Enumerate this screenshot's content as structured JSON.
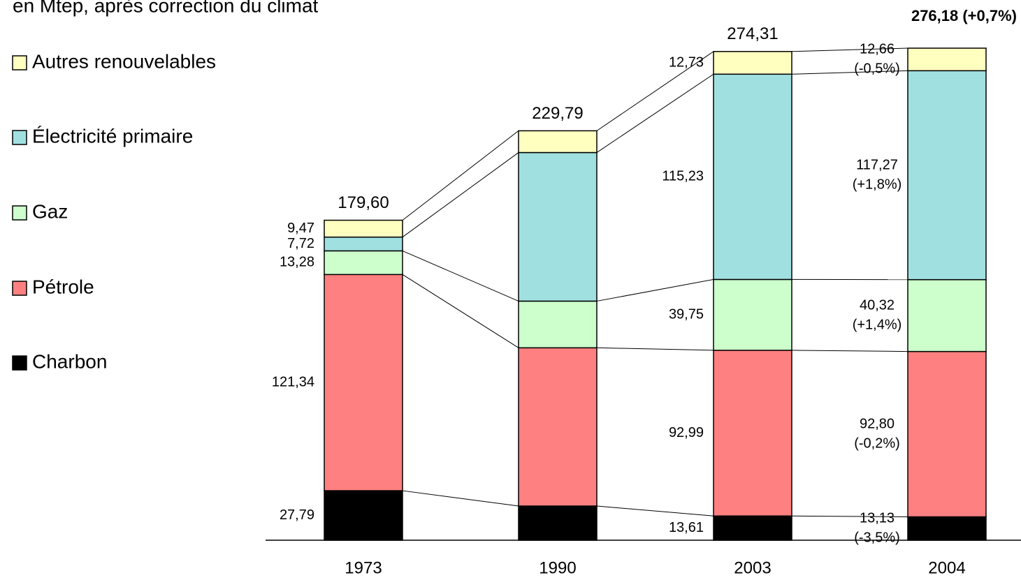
{
  "chart_data": {
    "type": "stacked_bar",
    "title": "en Mtep, après correction du climat",
    "categories": [
      "1973",
      "1990",
      "2003",
      "2004"
    ],
    "series": [
      {
        "name": "Charbon",
        "color": "#000000",
        "values": [
          27.79,
          19.2,
          13.61,
          13.13
        ],
        "value_labels": [
          "27,79",
          null,
          "13,61",
          "13,13"
        ],
        "change_labels": [
          null,
          null,
          null,
          "(-3,5%)"
        ]
      },
      {
        "name": "Pétrole",
        "color": "#ff8080",
        "values": [
          121.34,
          88.8,
          92.99,
          92.8
        ],
        "value_labels": [
          "121,34",
          null,
          "92,99",
          "92,80"
        ],
        "change_labels": [
          null,
          null,
          null,
          "(-0,2%)"
        ]
      },
      {
        "name": "Gaz",
        "color": "#ccffcc",
        "values": [
          13.28,
          26.2,
          39.75,
          40.32
        ],
        "value_labels": [
          "13,28",
          null,
          "39,75",
          "40,32"
        ],
        "change_labels": [
          null,
          null,
          null,
          "(+1,4%)"
        ]
      },
      {
        "name": "Électricité primaire",
        "color": "#a0e0e0",
        "values": [
          7.72,
          83.4,
          115.23,
          117.27
        ],
        "value_labels": [
          "7,72",
          null,
          "115,23",
          "117,27"
        ],
        "change_labels": [
          null,
          null,
          null,
          "(+1,8%)"
        ]
      },
      {
        "name": "Autres renouvelables",
        "color": "#ffffc0",
        "values": [
          9.47,
          12.2,
          12.73,
          12.66
        ],
        "value_labels": [
          "9,47",
          null,
          "12,73",
          "12,66"
        ],
        "change_labels": [
          null,
          null,
          null,
          "(-0,5%)"
        ]
      }
    ],
    "totals": [
      179.6,
      229.79,
      274.31,
      276.18
    ],
    "total_labels": [
      "179,60",
      "229,79",
      "274,31",
      "276,18  (+0,7%)"
    ]
  }
}
